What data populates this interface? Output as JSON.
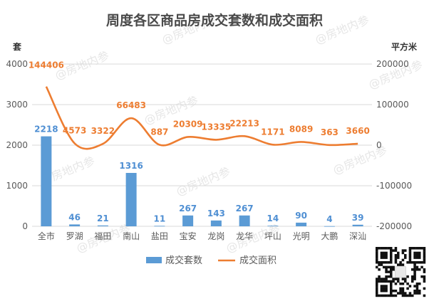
{
  "chart_data": {
    "type": "bar",
    "title": "周度各区商品房成交套数和成交面积",
    "categories": [
      "全市",
      "罗湖",
      "福田",
      "南山",
      "盐田",
      "宝安",
      "龙岗",
      "龙华",
      "坪山",
      "光明",
      "大鹏",
      "深汕"
    ],
    "left_axis": {
      "unit": "套",
      "ticks": [
        0,
        1000,
        2000,
        3000,
        4000
      ],
      "ylim": [
        0,
        4000
      ]
    },
    "right_axis": {
      "unit": "平方米",
      "ticks": [
        -200000,
        -100000,
        0,
        100000,
        200000
      ],
      "ylim": [
        -200000,
        200000
      ]
    },
    "series": [
      {
        "name": "成交套数",
        "type": "bar",
        "axis": "left",
        "color": "#5b9bd5",
        "values": [
          2218,
          46,
          21,
          1316,
          11,
          267,
          143,
          267,
          14,
          90,
          4,
          39
        ]
      },
      {
        "name": "成交面积",
        "type": "line",
        "axis": "right",
        "color": "#ed7d31",
        "values": [
          144406,
          4573,
          3322,
          66483,
          887,
          20309,
          13335,
          22213,
          1171,
          8089,
          363,
          3660
        ]
      }
    ],
    "grid": true,
    "legend": "bottom"
  },
  "watermark": "房地内参"
}
